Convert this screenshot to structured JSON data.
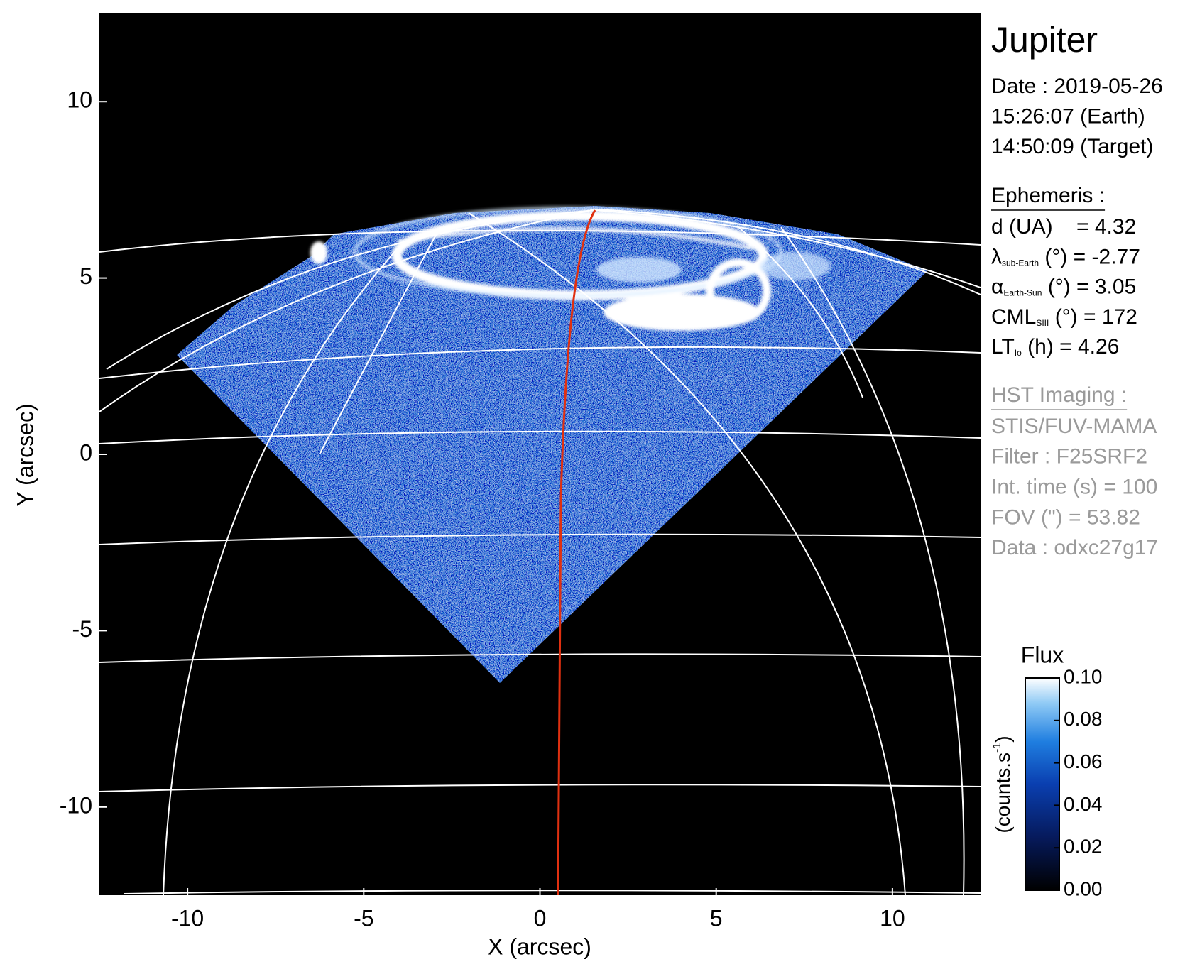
{
  "chart_data": {
    "type": "image",
    "xlabel": "X (arcsec)",
    "ylabel": "Y (arcsec)",
    "xlim": [
      -12.5,
      12.5
    ],
    "ylim": [
      -12.5,
      12.5
    ],
    "xticks": [
      -10,
      -5,
      0,
      5,
      10
    ],
    "yticks": [
      -10,
      -5,
      0,
      5,
      10
    ],
    "colorbar": {
      "title": "Flux",
      "unit": {
        "text": "(counts.s",
        "sup": "-1",
        "end": ")"
      },
      "lim": [
        0,
        0.1
      ],
      "ticks": [
        {
          "value": 0,
          "label": "0.00"
        },
        {
          "value": 0.02,
          "label": "0.02"
        },
        {
          "value": 0.04,
          "label": "0.04"
        },
        {
          "value": 0.06,
          "label": "0.06"
        },
        {
          "value": 0.08,
          "label": "0.08"
        },
        {
          "value": 0.1,
          "label": "0.10"
        }
      ]
    }
  },
  "info": {
    "title": "Jupiter",
    "date_lines": [
      "Date : 2019-05-26",
      "15:26:07 (Earth)",
      "14:50:09 (Target)"
    ],
    "ephemeris": {
      "heading": "Ephemeris :",
      "rows": [
        {
          "symbol": "d (UA)    = 4.32"
        },
        {
          "symbol": "λ",
          "sub": "sub-Earth",
          "rest": " (°) = -2.77"
        },
        {
          "symbol": "α",
          "sub": "Earth-Sun",
          "rest": " (°) = 3.05"
        },
        {
          "symbol": "CML",
          "sub": "SIII",
          "rest": " (°) = 172"
        },
        {
          "symbol": "LT",
          "sub": "Io",
          "rest": " (h) = 4.26"
        }
      ]
    },
    "hst": {
      "heading": "HST Imaging :",
      "lines": [
        "STIS/FUV-MAMA",
        "Filter : F25SRF2",
        "Int. time (s) = 100",
        "FOV (\") = 53.82",
        "Data : odxc27g17"
      ]
    }
  }
}
